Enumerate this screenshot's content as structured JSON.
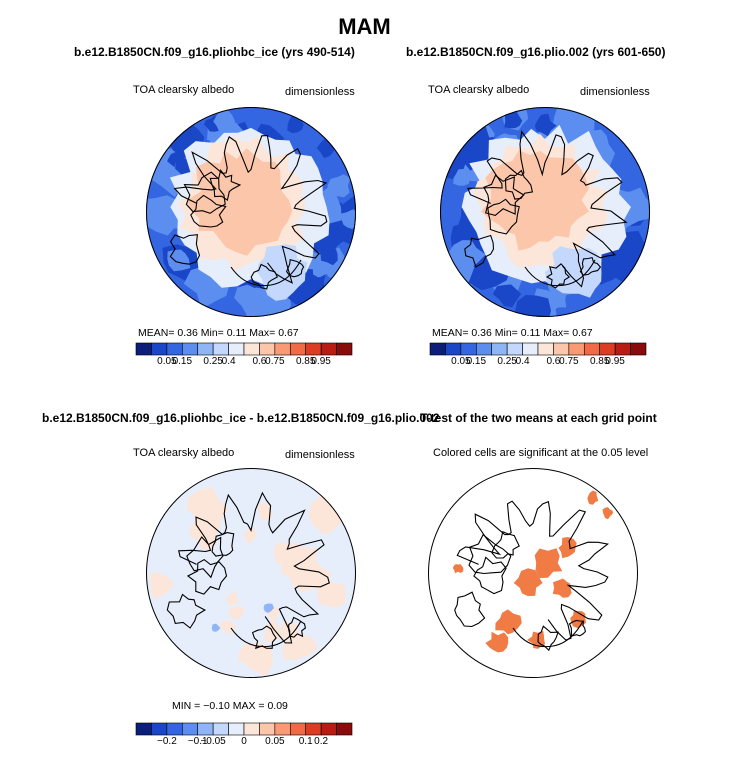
{
  "figure": {
    "title": "MAM"
  },
  "chart_data": [
    {
      "type": "heatmap",
      "projection": "north polar stereographic",
      "title": "b.e12.B1850CN.f09_g16.pliohbc_ice (yrs 490-514)",
      "field": "TOA clearsky albedo",
      "units": "dimensionless",
      "stats": {
        "mean_label": "MEAN=",
        "mean": "0.36",
        "min_label": "Min=",
        "min": "0.11",
        "max_label": "Max=",
        "max": "0.67"
      },
      "colorbar": {
        "levels": [
          "0.05",
          "0.15",
          "0.25",
          "0.4",
          "0.6",
          "0.75",
          "0.85",
          "0.95"
        ],
        "colors": [
          "#0a1e7a",
          "#1a46c8",
          "#3366e0",
          "#5c8ef0",
          "#8fb5f7",
          "#c3d8fc",
          "#e6eefc",
          "#fce6da",
          "#fcc6ab",
          "#f99a74",
          "#ef6a45",
          "#dc3d22",
          "#b81c12",
          "#8a0b0b"
        ]
      }
    },
    {
      "type": "heatmap",
      "projection": "north polar stereographic",
      "title": "b.e12.B1850CN.f09_g16.plio.002 (yrs 601-650)",
      "field": "TOA clearsky albedo",
      "units": "dimensionless",
      "stats": {
        "mean_label": "MEAN=",
        "mean": "0.36",
        "min_label": "Min=",
        "min": "0.11",
        "max_label": "Max=",
        "max": "0.67"
      },
      "colorbar": {
        "levels": [
          "0.05",
          "0.15",
          "0.25",
          "0.4",
          "0.6",
          "0.75",
          "0.85",
          "0.95"
        ],
        "colors": [
          "#0a1e7a",
          "#1a46c8",
          "#3366e0",
          "#5c8ef0",
          "#8fb5f7",
          "#c3d8fc",
          "#e6eefc",
          "#fce6da",
          "#fcc6ab",
          "#f99a74",
          "#ef6a45",
          "#dc3d22",
          "#b81c12",
          "#8a0b0b"
        ]
      }
    },
    {
      "type": "heatmap",
      "projection": "north polar stereographic",
      "title": "b.e12.B1850CN.f09_g16.pliohbc_ice - b.e12.B1850CN.f09_g16.plio.002",
      "field": "TOA clearsky albedo",
      "units": "dimensionless",
      "stats": {
        "min_label": "MIN =",
        "min": "−0.10",
        "max_label": "MAX =",
        "max": "0.09"
      },
      "colorbar": {
        "levels": [
          "−0.2",
          "−0.1",
          "−0.05",
          "0",
          "0.05",
          "0.1",
          "0.2"
        ],
        "colors": [
          "#0a1e7a",
          "#1a46c8",
          "#3366e0",
          "#5c8ef0",
          "#8fb5f7",
          "#c3d8fc",
          "#e6eefc",
          "#fce6da",
          "#fcc6ab",
          "#f99a74",
          "#ef6a45",
          "#dc3d22",
          "#b81c12",
          "#8a0b0b"
        ]
      }
    },
    {
      "type": "heatmap",
      "projection": "north polar stereographic",
      "title": "T-test of the two means at each grid point",
      "subtitle": "Colored cells are significant at the 0.05 level",
      "significant_color": "#f07b45"
    }
  ]
}
